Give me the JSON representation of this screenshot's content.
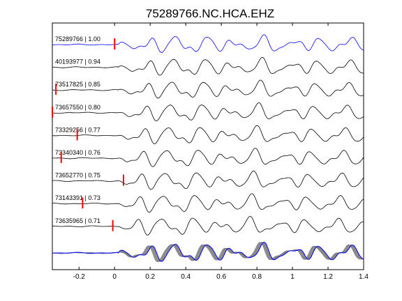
{
  "chart_data": {
    "type": "line",
    "title": "75289766.NC.HCA.EHZ",
    "xlabel": "",
    "ylabel": "",
    "xlim": [
      -0.35,
      1.4
    ],
    "xticks": [
      "0",
      "0.2",
      "0.4",
      "0.6",
      "0.8",
      "1",
      "1.2",
      "1.4"
    ],
    "xtick_values": [
      0,
      0.2,
      0.4,
      0.6,
      0.8,
      1.0,
      1.2,
      1.4
    ],
    "grid": false,
    "colors": {
      "reference": "#0000ff",
      "trace": "#000000",
      "stack": "#808080",
      "pick": "#ff0000"
    },
    "series": [
      {
        "id": "75289766",
        "label": "75289766 | 1.00",
        "correlation": 1.0,
        "pick_time": 0.0,
        "reference": true
      },
      {
        "id": "40193977",
        "label": "40193977 | 0.94",
        "correlation": 0.94,
        "pick_time": null
      },
      {
        "id": "73517825",
        "label": "73517825 | 0.85",
        "correlation": 0.85,
        "pick_time": -0.33
      },
      {
        "id": "73657550",
        "label": "73657550 | 0.80",
        "correlation": 0.8,
        "pick_time": -0.35
      },
      {
        "id": "73329256",
        "label": "73329256 | 0.77",
        "correlation": 0.77,
        "pick_time": -0.21
      },
      {
        "id": "73340340",
        "label": "73340340 | 0.76",
        "correlation": 0.76,
        "pick_time": -0.3
      },
      {
        "id": "73652770",
        "label": "73652770 | 0.75",
        "correlation": 0.75,
        "pick_time": 0.05
      },
      {
        "id": "73143391",
        "label": "73143391 | 0.73",
        "correlation": 0.73,
        "pick_time": -0.18
      },
      {
        "id": "73635965",
        "label": "73635965 | 0.71",
        "correlation": 0.71,
        "pick_time": -0.01
      }
    ],
    "stack": {
      "name": "",
      "overlay_count": 9
    }
  }
}
